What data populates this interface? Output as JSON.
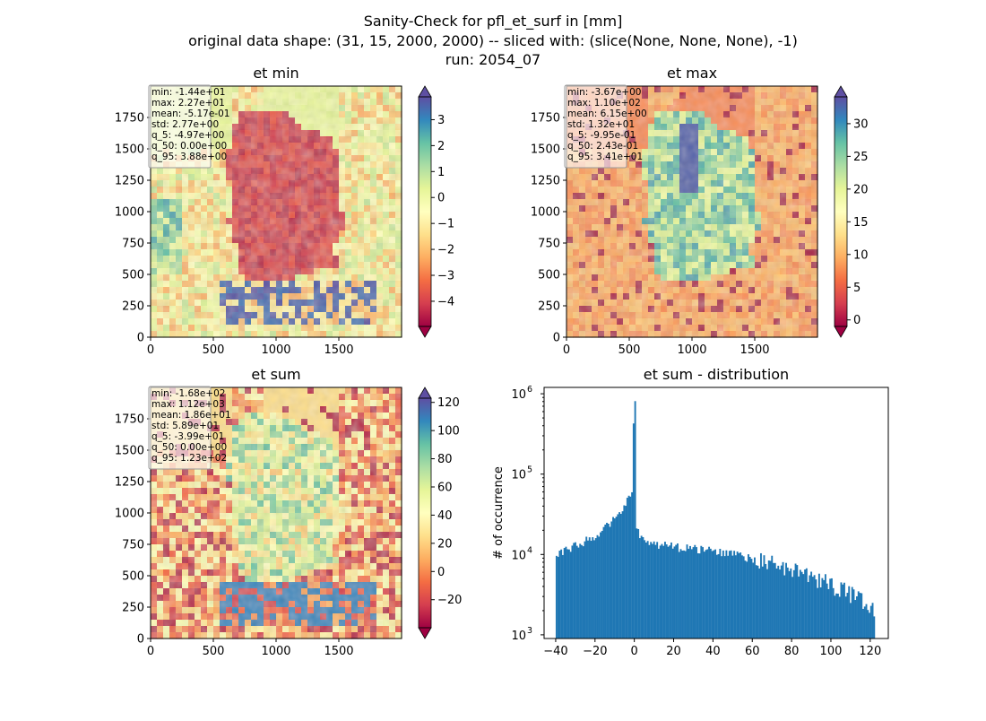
{
  "figure": {
    "title_lines": [
      "Sanity-Check for pfl_et_surf in [mm]",
      "original data shape: (31, 15, 2000, 2000) -- sliced with: (slice(None, None, None), -1)",
      "run: 2054_07"
    ]
  },
  "colormap": {
    "name": "Spectral",
    "stops": [
      "#9e0142",
      "#d53e4f",
      "#f46d43",
      "#fdae61",
      "#fee08b",
      "#ffffbf",
      "#e6f598",
      "#abdda4",
      "#66c2a5",
      "#3288bd",
      "#5e4fa2"
    ]
  },
  "chart_data": [
    {
      "type": "heatmap",
      "title": "et min",
      "x_ticks": [
        "0",
        "500",
        "1000",
        "1500"
      ],
      "y_ticks": [
        "0",
        "250",
        "500",
        "750",
        "1000",
        "1250",
        "1500",
        "1750"
      ],
      "xlim": [
        0,
        2000
      ],
      "ylim": [
        0,
        2000
      ],
      "colorbar": {
        "ticks": [
          "3",
          "2",
          "1",
          "0",
          "−1",
          "−2",
          "−3",
          "−4"
        ],
        "min": -4.97,
        "max": 3.88,
        "extend": "both"
      },
      "stats": [
        "min: -1.44e+01",
        "max: 2.27e+01",
        "mean: -5.17e-01",
        "std: 2.77e+00",
        "q_5: -4.97e+00",
        "q_50: 0.00e+00",
        "q_95: 3.88e+00"
      ]
    },
    {
      "type": "heatmap",
      "title": "et max",
      "x_ticks": [
        "0",
        "500",
        "1000",
        "1500"
      ],
      "y_ticks": [
        "0",
        "250",
        "500",
        "750",
        "1000",
        "1250",
        "1500",
        "1750"
      ],
      "xlim": [
        0,
        2000
      ],
      "ylim": [
        0,
        2000
      ],
      "colorbar": {
        "ticks": [
          "30",
          "25",
          "20",
          "15",
          "10",
          "5",
          "0"
        ],
        "min": -0.995,
        "max": 34.1,
        "extend": "both"
      },
      "stats": [
        "min: -3.67e+00",
        "max: 1.10e+02",
        "mean: 6.15e+00",
        "std: 1.32e+01",
        "q_5: -9.95e-01",
        "q_50: 2.43e-01",
        "q_95: 3.41e+01"
      ]
    },
    {
      "type": "heatmap",
      "title": "et sum",
      "x_ticks": [
        "0",
        "500",
        "1000",
        "1500"
      ],
      "y_ticks": [
        "0",
        "250",
        "500",
        "750",
        "1000",
        "1250",
        "1500",
        "1750"
      ],
      "xlim": [
        0,
        2000
      ],
      "ylim": [
        0,
        2000
      ],
      "colorbar": {
        "ticks": [
          "120",
          "100",
          "80",
          "60",
          "40",
          "20",
          "0",
          "−20"
        ],
        "min": -39.9,
        "max": 123,
        "extend": "both"
      },
      "stats": [
        "min: -1.68e+02",
        "max: 1.12e+03",
        "mean: 1.86e+01",
        "std: 5.89e+01",
        "q_5: -3.99e+01",
        "q_50: 0.00e+00",
        "q_95: 1.23e+02"
      ]
    },
    {
      "type": "bar",
      "title": "et sum - distribution",
      "ylabel": "# of occurrence",
      "yscale": "log",
      "x_ticks": [
        "−40",
        "−20",
        "0",
        "20",
        "40",
        "60",
        "80",
        "100",
        "120"
      ],
      "y_ticks": [
        "10",
        "10",
        "10",
        "10"
      ],
      "y_tick_exponents": [
        "3",
        "4",
        "5",
        "6"
      ],
      "xlim": [
        -45.9,
        129.2
      ],
      "ylim": [
        900,
        1200000
      ],
      "bin_width": 0.8,
      "bar_color": "#1f77b4",
      "histogram": {
        "x": [
          -40,
          -30,
          -20,
          -10,
          -4,
          -1.5,
          -1,
          -0.5,
          0,
          3,
          10,
          20,
          40,
          60,
          80,
          100,
          110,
          122
        ],
        "counts": [
          10000,
          13000,
          17000,
          27000,
          45000,
          55000,
          62000,
          810000,
          26000,
          16000,
          13500,
          12500,
          11000,
          9000,
          6500,
          4300,
          3400,
          2200
        ]
      }
    }
  ]
}
